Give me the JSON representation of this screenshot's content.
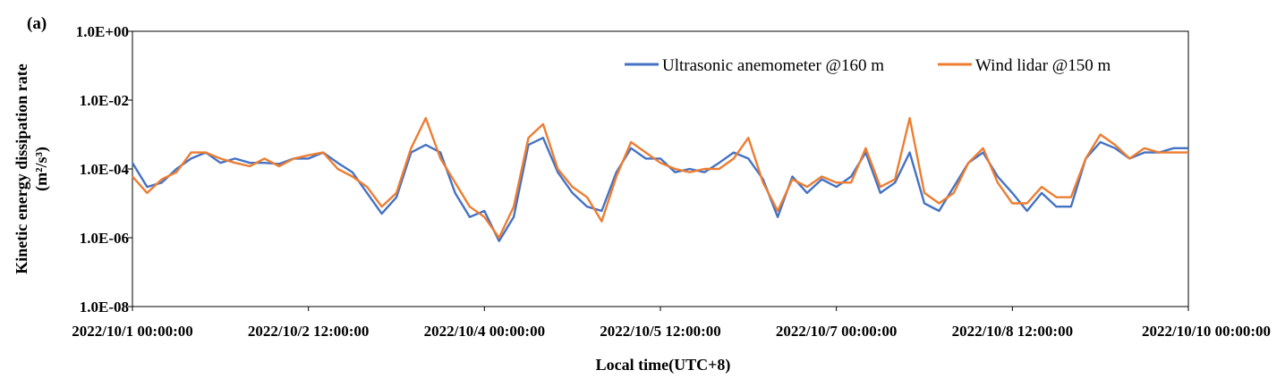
{
  "panel_label": "(a)",
  "chart_data": {
    "type": "line",
    "title": "",
    "xlabel": "Local time(UTC+8)",
    "ylabel": "Kinetic energy dissipation rate",
    "ylabel_unit_line": "(m²/s³)",
    "y_scale": "log",
    "ylim": [
      1e-08,
      1
    ],
    "y_tick_labels": [
      "1.0E+00",
      "1.0E-02",
      "1.0E-04",
      "1.0E-06",
      "1.0E-08"
    ],
    "x_range_days": [
      "2022/10/1 00:00:00",
      "2022/10/10 00:00:00"
    ],
    "x_tick_labels": [
      "2022/10/1 00:00:00",
      "2022/10/2 12:00:00",
      "2022/10/4 00:00:00",
      "2022/10/5 12:00:00",
      "2022/10/7 00:00:00",
      "2022/10/8 12:00:00",
      "2022/10/10 00:00:00"
    ],
    "grid": false,
    "legend_position": "top-right",
    "sample_interval_hours": 3,
    "series": [
      {
        "name": "Ultrasonic anemometer @160 m",
        "color": "#4472C4",
        "x": [
          "10/1 00:00",
          "10/1 03:00",
          "10/1 06:00",
          "10/1 09:00",
          "10/1 12:00",
          "10/1 15:00",
          "10/1 18:00",
          "10/1 21:00",
          "10/2 00:00",
          "10/2 03:00",
          "10/2 06:00",
          "10/2 09:00",
          "10/2 12:00",
          "10/2 15:00",
          "10/2 18:00",
          "10/2 21:00",
          "10/3 00:00",
          "10/3 03:00",
          "10/3 06:00",
          "10/3 09:00",
          "10/3 12:00",
          "10/3 15:00",
          "10/3 18:00",
          "10/3 21:00",
          "10/4 00:00",
          "10/4 03:00",
          "10/4 06:00",
          "10/4 09:00",
          "10/4 12:00",
          "10/4 15:00",
          "10/4 18:00",
          "10/4 21:00",
          "10/5 00:00",
          "10/5 03:00",
          "10/5 06:00",
          "10/5 09:00",
          "10/5 12:00",
          "10/5 15:00",
          "10/5 18:00",
          "10/5 21:00",
          "10/6 00:00",
          "10/6 03:00",
          "10/6 06:00",
          "10/6 09:00",
          "10/6 12:00",
          "10/6 15:00",
          "10/6 18:00",
          "10/6 21:00",
          "10/7 00:00",
          "10/7 03:00",
          "10/7 06:00",
          "10/7 09:00",
          "10/7 12:00",
          "10/7 15:00",
          "10/7 18:00",
          "10/7 21:00",
          "10/8 00:00",
          "10/8 03:00",
          "10/8 06:00",
          "10/8 09:00",
          "10/8 12:00",
          "10/8 15:00",
          "10/8 18:00",
          "10/8 21:00",
          "10/9 00:00",
          "10/9 03:00",
          "10/9 06:00",
          "10/9 09:00",
          "10/9 12:00",
          "10/9 15:00",
          "10/9 18:00",
          "10/9 21:00",
          "10/10 00:00"
        ],
        "values": [
          0.00015,
          3e-05,
          4e-05,
          0.0001,
          0.0002,
          0.0003,
          0.00015,
          0.0002,
          0.00015,
          0.00015,
          0.00014,
          0.0002,
          0.0002,
          0.0003,
          0.00015,
          8e-05,
          2e-05,
          5e-06,
          1.5e-05,
          0.0003,
          0.0005,
          0.0003,
          2e-05,
          4e-06,
          6e-06,
          8e-07,
          4e-06,
          0.0005,
          0.0008,
          8e-05,
          2e-05,
          8e-06,
          6e-06,
          8e-05,
          0.0004,
          0.0002,
          0.0002,
          8e-05,
          0.0001,
          8e-05,
          0.00015,
          0.0003,
          0.0002,
          5e-05,
          4e-06,
          6e-05,
          2e-05,
          5e-05,
          3e-05,
          6e-05,
          0.0003,
          2e-05,
          4e-05,
          0.0003,
          1e-05,
          6e-06,
          3e-05,
          0.00015,
          0.0003,
          6e-05,
          2e-05,
          6e-06,
          2e-05,
          8e-06,
          8e-06,
          0.0002,
          0.0006,
          0.0004,
          0.0002,
          0.0003,
          0.0003,
          0.0004,
          0.0004
        ]
      },
      {
        "name": "Wind lidar @150 m",
        "color": "#ED7D31",
        "x": [
          "10/1 00:00",
          "10/1 03:00",
          "10/1 06:00",
          "10/1 09:00",
          "10/1 12:00",
          "10/1 15:00",
          "10/1 18:00",
          "10/1 21:00",
          "10/2 00:00",
          "10/2 03:00",
          "10/2 06:00",
          "10/2 09:00",
          "10/2 12:00",
          "10/2 15:00",
          "10/2 18:00",
          "10/2 21:00",
          "10/3 00:00",
          "10/3 03:00",
          "10/3 06:00",
          "10/3 09:00",
          "10/3 12:00",
          "10/3 15:00",
          "10/3 18:00",
          "10/3 21:00",
          "10/4 00:00",
          "10/4 03:00",
          "10/4 06:00",
          "10/4 09:00",
          "10/4 12:00",
          "10/4 15:00",
          "10/4 18:00",
          "10/4 21:00",
          "10/5 00:00",
          "10/5 03:00",
          "10/5 06:00",
          "10/5 09:00",
          "10/5 12:00",
          "10/5 15:00",
          "10/5 18:00",
          "10/5 21:00",
          "10/6 00:00",
          "10/6 03:00",
          "10/6 06:00",
          "10/6 09:00",
          "10/6 12:00",
          "10/6 15:00",
          "10/6 18:00",
          "10/6 21:00",
          "10/7 00:00",
          "10/7 03:00",
          "10/7 06:00",
          "10/7 09:00",
          "10/7 12:00",
          "10/7 15:00",
          "10/7 18:00",
          "10/7 21:00",
          "10/8 00:00",
          "10/8 03:00",
          "10/8 06:00",
          "10/8 09:00",
          "10/8 12:00",
          "10/8 15:00",
          "10/8 18:00",
          "10/8 21:00",
          "10/9 00:00",
          "10/9 03:00",
          "10/9 06:00",
          "10/9 09:00",
          "10/9 12:00",
          "10/9 15:00",
          "10/9 18:00",
          "10/9 21:00",
          "10/10 00:00"
        ],
        "values": [
          6e-05,
          2e-05,
          5e-05,
          8e-05,
          0.0003,
          0.0003,
          0.0002,
          0.00015,
          0.00012,
          0.0002,
          0.00012,
          0.0002,
          0.00025,
          0.0003,
          0.0001,
          6e-05,
          3e-05,
          8e-06,
          2e-05,
          0.0004,
          0.003,
          0.0002,
          4e-05,
          8e-06,
          4e-06,
          1e-06,
          8e-06,
          0.0008,
          0.002,
          0.0001,
          3e-05,
          1.5e-05,
          3e-06,
          6e-05,
          0.0006,
          0.0003,
          0.00015,
          0.0001,
          8e-05,
          0.0001,
          0.0001,
          0.0002,
          0.0008,
          4e-05,
          6e-06,
          5e-05,
          3e-05,
          6e-05,
          4e-05,
          4e-05,
          0.0004,
          3e-05,
          5e-05,
          0.003,
          2e-05,
          1e-05,
          2e-05,
          0.00015,
          0.0004,
          4e-05,
          1e-05,
          1e-05,
          3e-05,
          1.5e-05,
          1.5e-05,
          0.0002,
          0.001,
          0.0005,
          0.0002,
          0.0004,
          0.0003,
          0.0003,
          0.0003
        ]
      }
    ]
  }
}
